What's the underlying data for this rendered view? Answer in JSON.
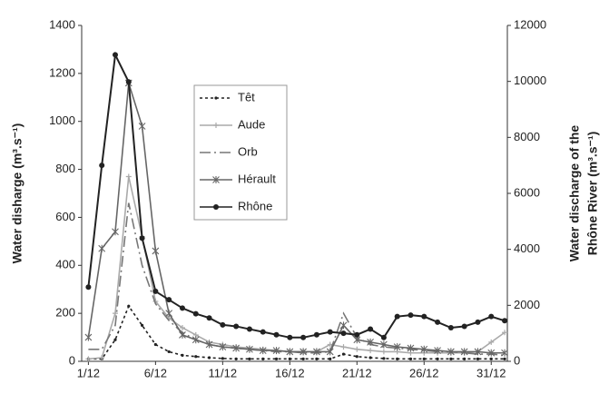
{
  "chart_data": {
    "type": "line",
    "x": [
      1,
      2,
      3,
      4,
      5,
      6,
      7,
      8,
      9,
      10,
      11,
      12,
      13,
      14,
      15,
      16,
      17,
      18,
      19,
      20,
      21,
      22,
      23,
      24,
      25,
      26,
      27,
      28,
      29,
      30,
      31,
      32
    ],
    "xlim": [
      0.5,
      32.2
    ],
    "xticks": [
      {
        "value": 1,
        "label": "1/12"
      },
      {
        "value": 6,
        "label": "6/12"
      },
      {
        "value": 11,
        "label": "11/12"
      },
      {
        "value": 16,
        "label": "16/12"
      },
      {
        "value": 21,
        "label": "21/12"
      },
      {
        "value": 26,
        "label": "26/12"
      },
      {
        "value": 31,
        "label": "31/12"
      }
    ],
    "ylim": [
      0,
      1400
    ],
    "yticks": [
      0,
      200,
      400,
      600,
      800,
      1000,
      1200,
      1400
    ],
    "y2lim": [
      0,
      12000
    ],
    "y2ticks": [
      0,
      2000,
      4000,
      6000,
      8000,
      10000,
      12000
    ],
    "ylabel": "Water disharge (m³.s⁻¹)",
    "y2label": [
      "Water discharge of the",
      "Rhône River (m³.s⁻¹)"
    ],
    "series": [
      {
        "name": "Têt",
        "color": "#222222",
        "dash": "3,3",
        "marker": "dot",
        "values": [
          10,
          10,
          90,
          230,
          150,
          70,
          40,
          25,
          20,
          15,
          12,
          10,
          10,
          10,
          10,
          10,
          10,
          10,
          10,
          30,
          20,
          15,
          12,
          10,
          10,
          10,
          10,
          10,
          10,
          10,
          10,
          10
        ]
      },
      {
        "name": "Aude",
        "color": "#aaaaaa",
        "dash": "",
        "marker": "plus",
        "values": [
          10,
          15,
          200,
          770,
          520,
          250,
          180,
          140,
          110,
          80,
          70,
          60,
          55,
          50,
          45,
          40,
          40,
          40,
          70,
          60,
          50,
          45,
          40,
          40,
          35,
          35,
          35,
          35,
          35,
          40,
          80,
          120
        ]
      },
      {
        "name": "Orb",
        "color": "#777777",
        "dash": "12,4,2,4",
        "marker": "none",
        "values": [
          50,
          50,
          150,
          660,
          400,
          240,
          170,
          120,
          90,
          70,
          60,
          55,
          50,
          45,
          40,
          40,
          35,
          35,
          40,
          200,
          100,
          70,
          60,
          55,
          50,
          45,
          40,
          40,
          35,
          30,
          30,
          25
        ]
      },
      {
        "name": "Hérault",
        "color": "#666666",
        "dash": "",
        "marker": "star",
        "values": [
          100,
          470,
          540,
          1160,
          980,
          460,
          200,
          110,
          90,
          70,
          60,
          55,
          50,
          45,
          45,
          40,
          40,
          40,
          40,
          150,
          90,
          80,
          70,
          60,
          55,
          50,
          45,
          40,
          40,
          40,
          35,
          35
        ]
      },
      {
        "name": "Rhône",
        "color": "#222222",
        "dash": "",
        "marker": "circle",
        "axis": "y2",
        "values": [
          2650,
          7000,
          10950,
          9980,
          4400,
          2500,
          2200,
          1900,
          1700,
          1550,
          1300,
          1250,
          1150,
          1050,
          950,
          850,
          850,
          950,
          1050,
          1000,
          950,
          1150,
          850,
          1600,
          1650,
          1600,
          1400,
          1200,
          1250,
          1400,
          1600,
          1450
        ]
      }
    ]
  }
}
